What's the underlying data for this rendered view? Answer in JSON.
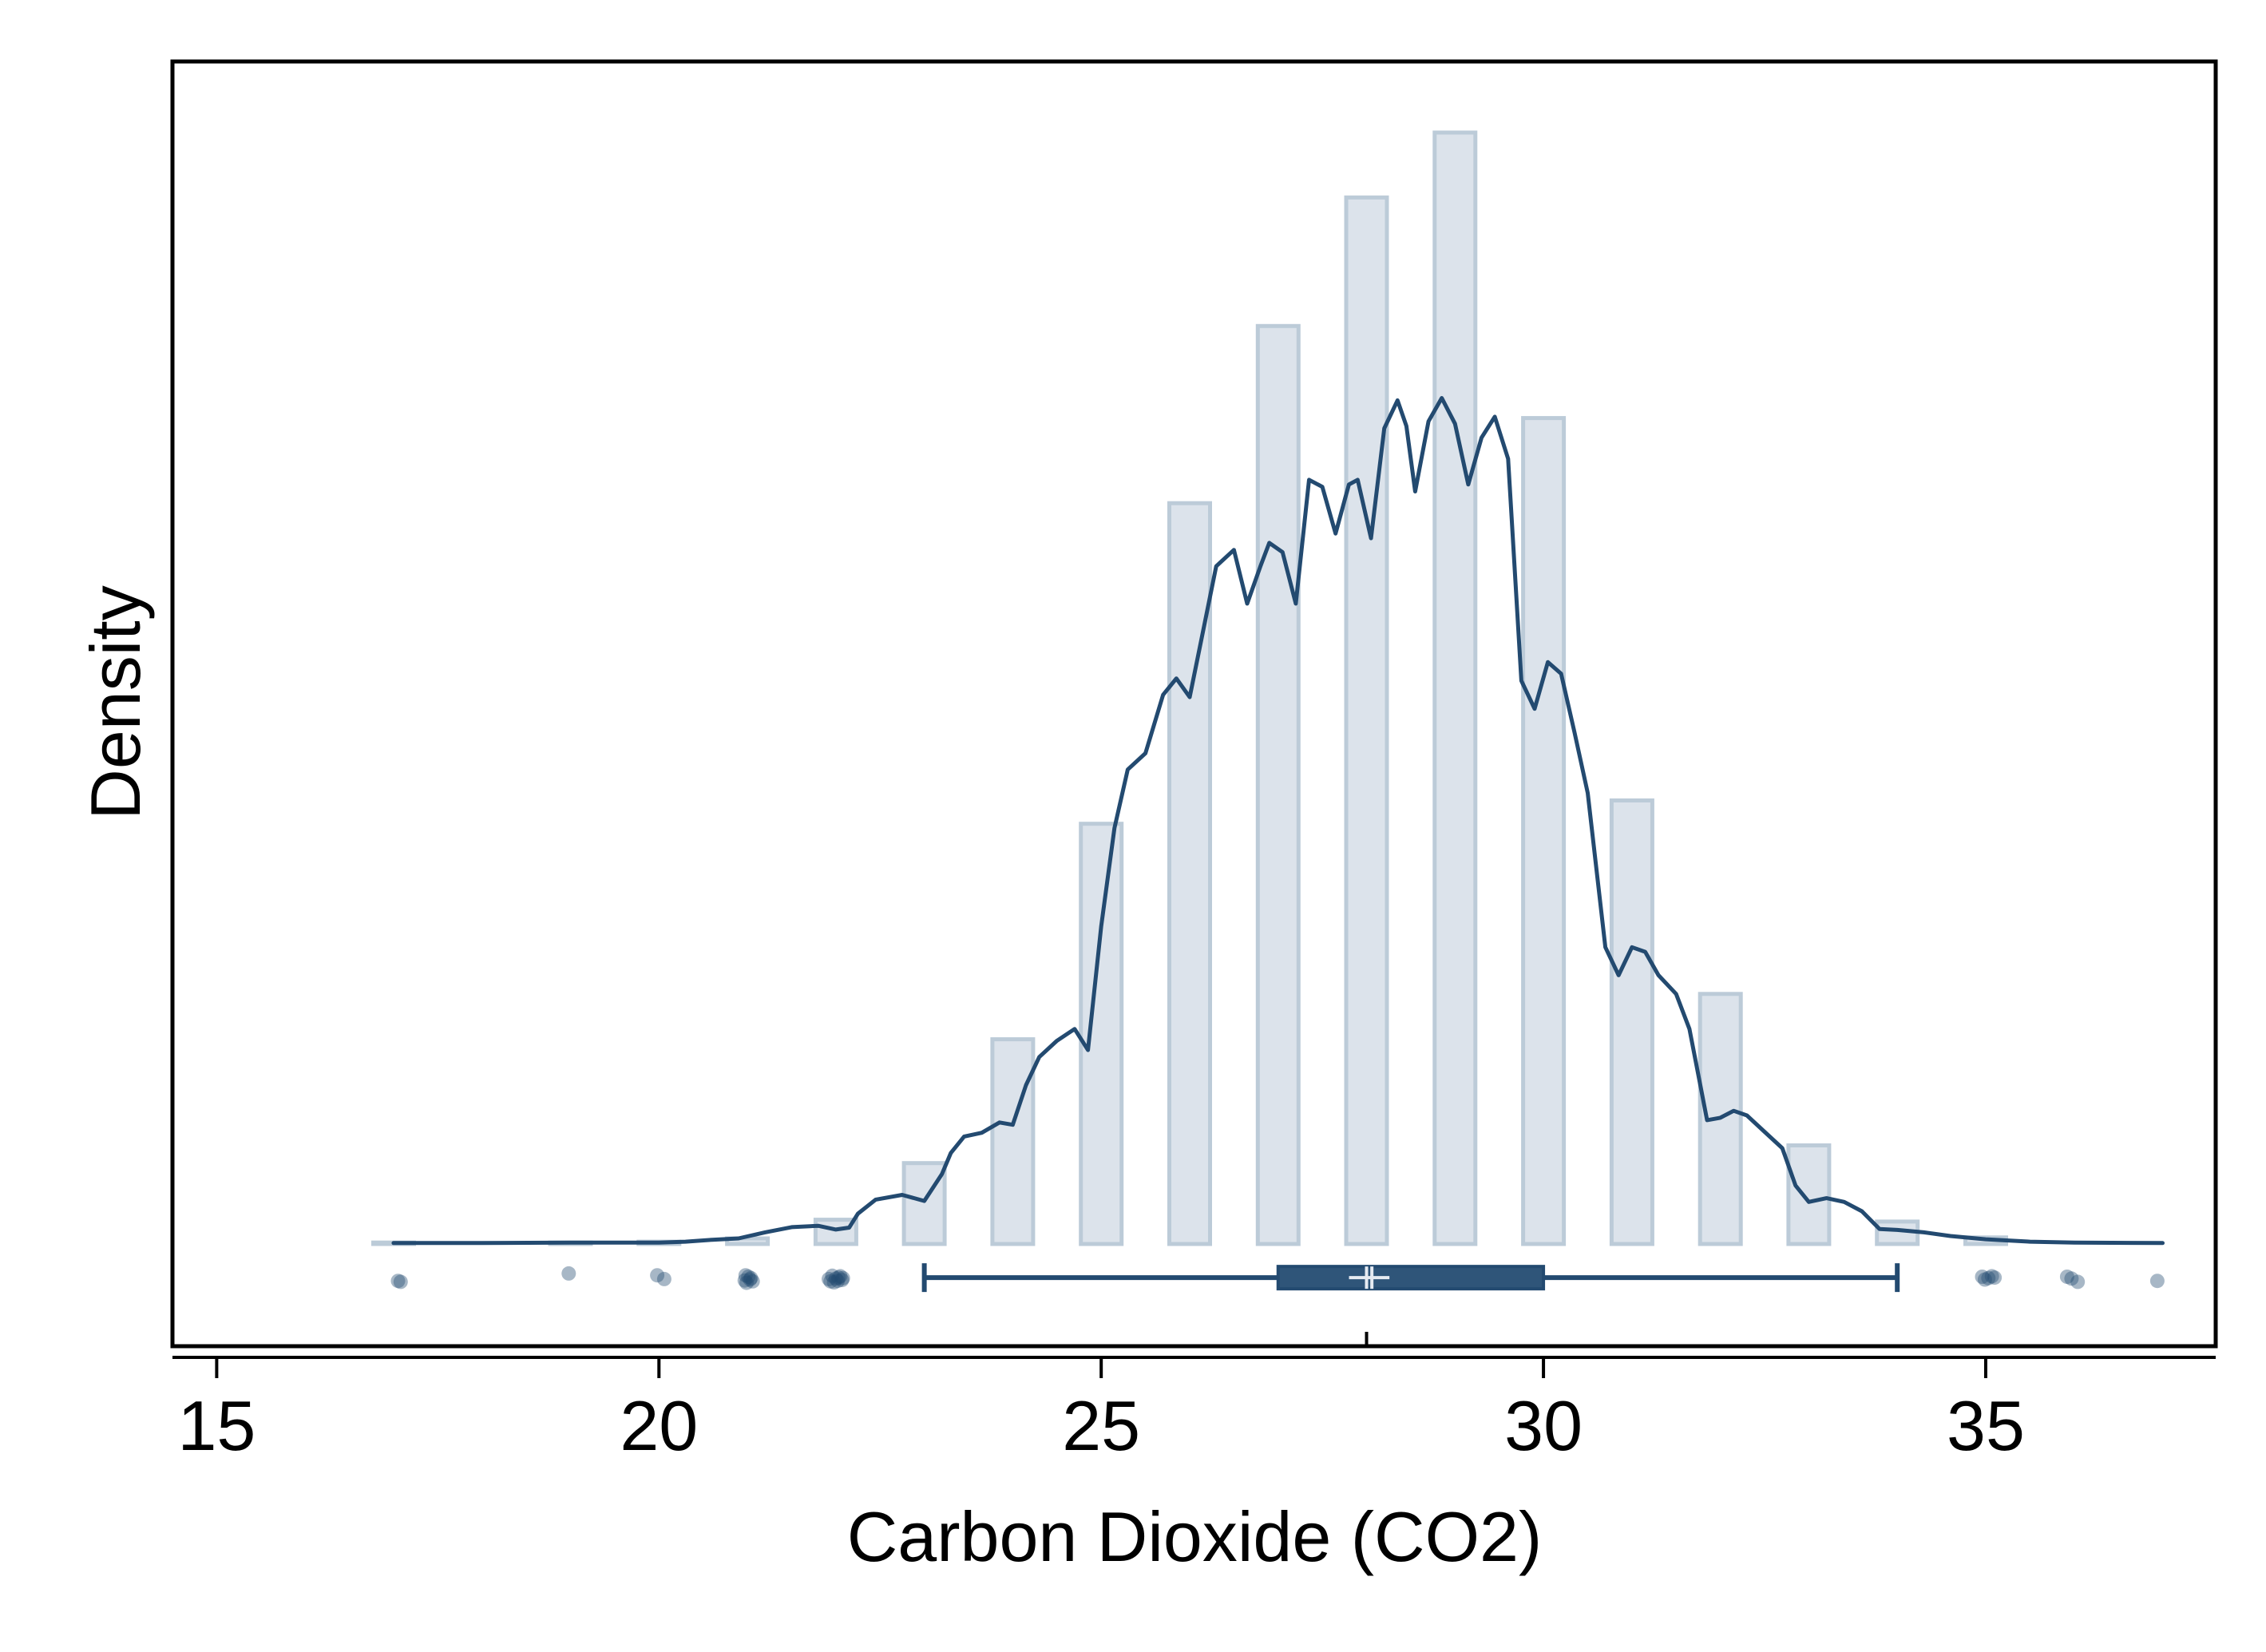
{
  "chart_data": {
    "type": "bar",
    "title": "",
    "xlabel": "Carbon Dioxide (CO2)",
    "ylabel": "Density",
    "xlim": [
      14.5,
      37.6
    ],
    "ylim": [
      0,
      0.253
    ],
    "x_ticks": [
      15,
      20,
      25,
      30,
      35
    ],
    "x_tick_labels": [
      "15",
      "20",
      "25",
      "30",
      "35"
    ],
    "y_ticks_shown": false,
    "grid": false,
    "legend": "none",
    "colors": {
      "bar_fill": "#dce3eb",
      "bar_stroke": "#bccbd8",
      "line": "#234a70",
      "box_fill": "#2f5579",
      "median": "#e6ebf2",
      "outlier": "#234a70",
      "frame": "#000000"
    },
    "histogram": {
      "name": "",
      "bins": [
        {
          "x": 17,
          "density": 0.0003
        },
        {
          "x": 19,
          "density": 0.0003
        },
        {
          "x": 20,
          "density": 0.0005
        },
        {
          "x": 21,
          "density": 0.0012
        },
        {
          "x": 22,
          "density": 0.0052
        },
        {
          "x": 23,
          "density": 0.0173
        },
        {
          "x": 24,
          "density": 0.0438
        },
        {
          "x": 25,
          "density": 0.0899
        },
        {
          "x": 26,
          "density": 0.1585
        },
        {
          "x": 27,
          "density": 0.1964
        },
        {
          "x": 28,
          "density": 0.2239
        },
        {
          "x": 29,
          "density": 0.2378
        },
        {
          "x": 30,
          "density": 0.1767
        },
        {
          "x": 31,
          "density": 0.0949
        },
        {
          "x": 32,
          "density": 0.0535
        },
        {
          "x": 33,
          "density": 0.0211
        },
        {
          "x": 34,
          "density": 0.0048
        },
        {
          "x": 35,
          "density": 0.0014
        }
      ],
      "bar_width": 0.46
    },
    "density_curve": {
      "name": "",
      "x": [
        17,
        18,
        19,
        20,
        20.3,
        20.6,
        20.9,
        21.2,
        21.5,
        21.8,
        22.0,
        22.15,
        22.25,
        22.45,
        22.75,
        23.0,
        23.2,
        23.3,
        23.45,
        23.65,
        23.85,
        24.0,
        24.15,
        24.3,
        24.5,
        24.7,
        24.85,
        25.0,
        25.15,
        25.3,
        25.5,
        25.7,
        25.85,
        26.0,
        26.15,
        26.3,
        26.5,
        26.65,
        26.8,
        26.9,
        27.05,
        27.2,
        27.35,
        27.5,
        27.65,
        27.8,
        27.9,
        28.05,
        28.2,
        28.35,
        28.45,
        28.55,
        28.7,
        28.85,
        29.0,
        29.15,
        29.3,
        29.45,
        29.6,
        29.75,
        29.9,
        30.05,
        30.2,
        30.35,
        30.5,
        30.7,
        30.85,
        31.0,
        31.15,
        31.3,
        31.5,
        31.65,
        31.85,
        32.0,
        32.15,
        32.3,
        32.5,
        32.7,
        32.85,
        33.0,
        33.2,
        33.4,
        33.6,
        33.8,
        34.0,
        34.3,
        34.6,
        35.0,
        35.5,
        36.0,
        37.0
      ],
      "y": [
        0.0002,
        0.0002,
        0.0003,
        0.0003,
        0.0005,
        0.0009,
        0.0012,
        0.0025,
        0.0036,
        0.0039,
        0.0031,
        0.0035,
        0.0065,
        0.0095,
        0.0105,
        0.0092,
        0.015,
        0.0195,
        0.023,
        0.0238,
        0.026,
        0.0255,
        0.034,
        0.04,
        0.0435,
        0.046,
        0.0415,
        0.068,
        0.089,
        0.1015,
        0.105,
        0.1175,
        0.121,
        0.117,
        0.131,
        0.145,
        0.1485,
        0.137,
        0.145,
        0.15,
        0.148,
        0.137,
        0.1635,
        0.162,
        0.152,
        0.1625,
        0.1635,
        0.151,
        0.1745,
        0.1805,
        0.175,
        0.161,
        0.176,
        0.181,
        0.1755,
        0.1625,
        0.1725,
        0.177,
        0.168,
        0.1205,
        0.1145,
        0.1245,
        0.122,
        0.1095,
        0.0965,
        0.0635,
        0.0575,
        0.0635,
        0.0625,
        0.0575,
        0.0535,
        0.046,
        0.0265,
        0.027,
        0.0285,
        0.0275,
        0.024,
        0.0205,
        0.0125,
        0.009,
        0.0098,
        0.009,
        0.007,
        0.0032,
        0.003,
        0.0025,
        0.0017,
        0.001,
        0.0005,
        0.0003,
        0.0002
      ]
    },
    "boxplot": {
      "whisker_low": 23,
      "q1": 27,
      "median": 28,
      "mean": 28.06,
      "q3": 30,
      "whisker_high": 34,
      "y_level": -0.0072
    },
    "outliers": [
      {
        "x": 17.05,
        "y": -0.0079
      },
      {
        "x": 17.08,
        "y": -0.0081
      },
      {
        "x": 18.98,
        "y": -0.0063
      },
      {
        "x": 19.98,
        "y": -0.0067
      },
      {
        "x": 20.06,
        "y": -0.0075
      },
      {
        "x": 20.98,
        "y": -0.0067
      },
      {
        "x": 21.04,
        "y": -0.0073
      },
      {
        "x": 20.97,
        "y": -0.0078
      },
      {
        "x": 21.06,
        "y": -0.008
      },
      {
        "x": 21.01,
        "y": -0.007
      },
      {
        "x": 20.99,
        "y": -0.0083
      },
      {
        "x": 21.03,
        "y": -0.0076
      },
      {
        "x": 21.96,
        "y": -0.0068
      },
      {
        "x": 22.03,
        "y": -0.0072
      },
      {
        "x": 22.07,
        "y": -0.0077
      },
      {
        "x": 21.94,
        "y": -0.008
      },
      {
        "x": 22.0,
        "y": -0.0074
      },
      {
        "x": 22.05,
        "y": -0.0069
      },
      {
        "x": 21.98,
        "y": -0.0082
      },
      {
        "x": 22.08,
        "y": -0.0073
      },
      {
        "x": 22.02,
        "y": -0.0079
      },
      {
        "x": 21.92,
        "y": -0.0075
      },
      {
        "x": 34.96,
        "y": -0.007
      },
      {
        "x": 35.03,
        "y": -0.0073
      },
      {
        "x": 35.07,
        "y": -0.0069
      },
      {
        "x": 34.99,
        "y": -0.0076
      },
      {
        "x": 35.1,
        "y": -0.0072
      },
      {
        "x": 35.92,
        "y": -0.007
      },
      {
        "x": 35.97,
        "y": -0.0074
      },
      {
        "x": 36.04,
        "y": -0.0081
      },
      {
        "x": 36.94,
        "y": -0.0079
      }
    ]
  }
}
